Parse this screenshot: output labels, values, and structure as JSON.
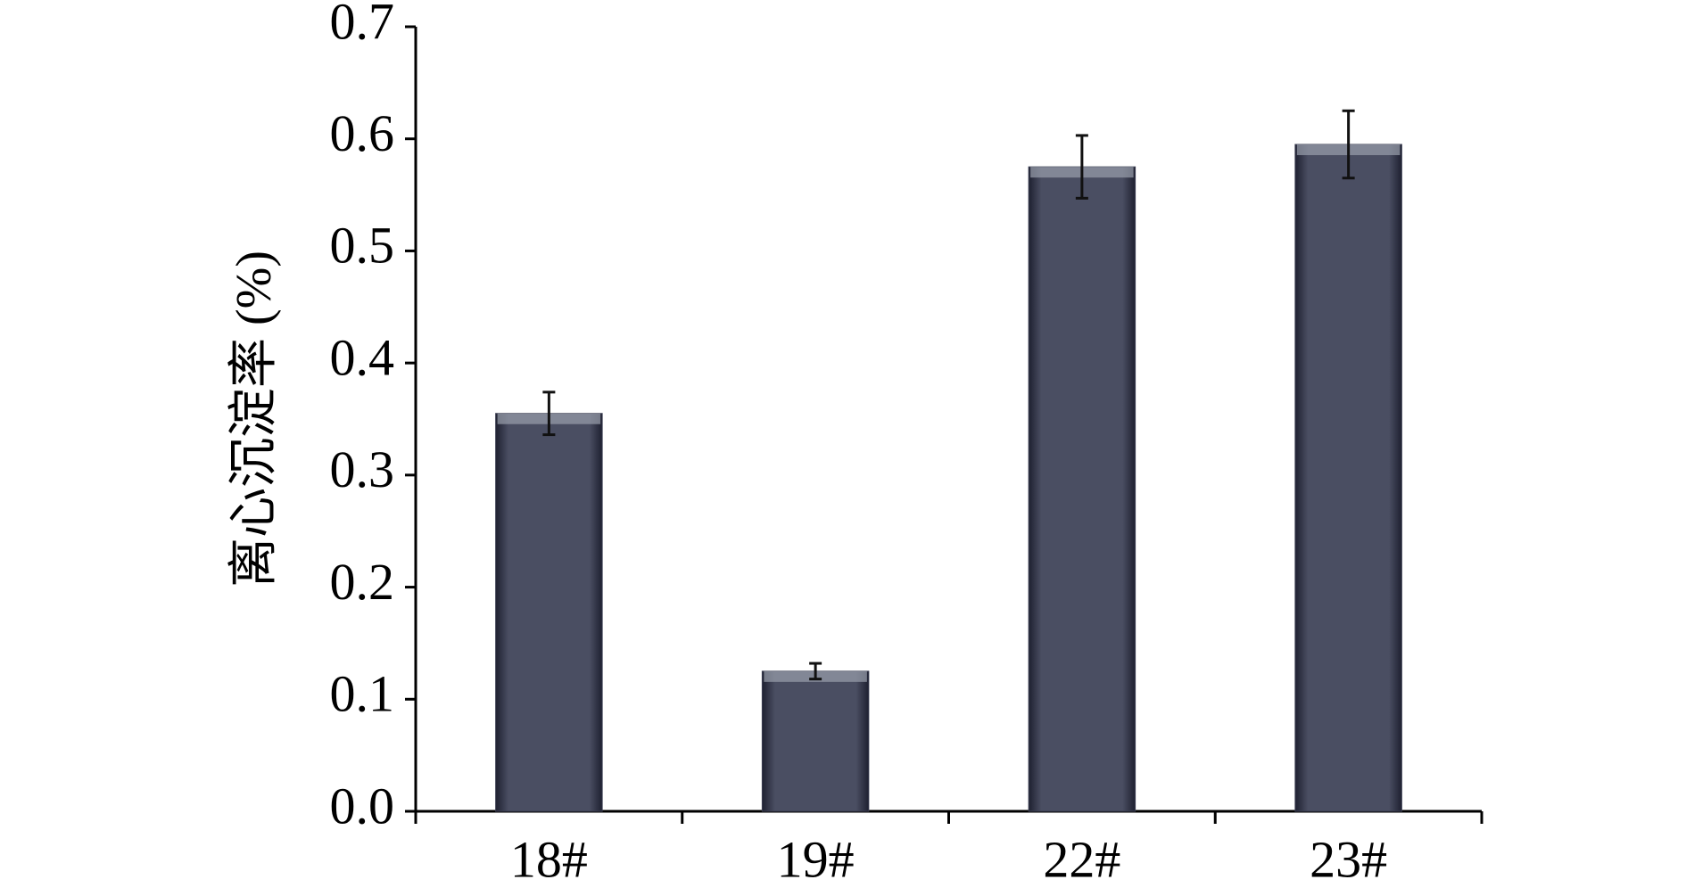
{
  "chart_data": {
    "type": "bar",
    "y_label": "离心沉淀率 (%)",
    "categories": [
      "18#",
      "19#",
      "22#",
      "23#"
    ],
    "values": [
      0.355,
      0.125,
      0.575,
      0.595
    ],
    "errors": [
      0.019,
      0.007,
      0.028,
      0.03
    ],
    "color": "#3b3e52",
    "ylim": [
      0,
      0.7
    ],
    "yticks": [
      {
        "value": 0,
        "label": "0.0"
      },
      0.1,
      0.2,
      0.3,
      0.4,
      0.5,
      0.6,
      0.7
    ],
    "grid": false
  }
}
